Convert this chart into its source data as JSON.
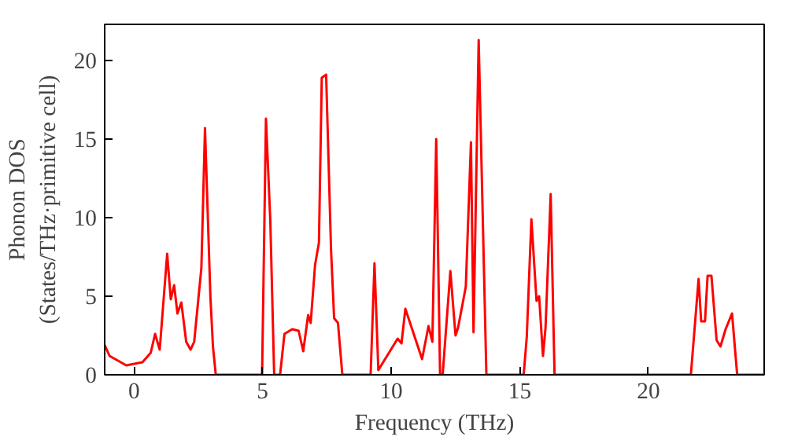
{
  "chart_data": {
    "type": "line",
    "xlabel": "Frequency (THz)",
    "ylabel": "Phonon DOS\n(States/THz·primitive cell)",
    "x": [
      -1.14,
      -0.95,
      -0.3,
      0.33,
      0.65,
      0.82,
      1.0,
      1.29,
      1.43,
      1.56,
      1.69,
      1.84,
      2.03,
      2.2,
      2.34,
      2.62,
      2.76,
      2.97,
      3.07,
      3.18,
      4.98,
      5.13,
      5.3,
      5.45,
      5.68,
      5.85,
      6.15,
      6.4,
      6.58,
      6.77,
      6.87,
      7.04,
      7.19,
      7.3,
      7.47,
      7.66,
      7.78,
      7.93,
      8.1,
      9.2,
      9.35,
      9.5,
      10.25,
      10.4,
      10.55,
      11.2,
      11.45,
      11.6,
      11.75,
      11.9,
      12.0,
      12.3,
      12.5,
      12.6,
      12.9,
      13.1,
      13.2,
      13.4,
      13.7,
      15.15,
      15.27,
      15.45,
      15.65,
      15.75,
      15.9,
      16.0,
      16.2,
      16.35,
      21.65,
      21.95,
      22.05,
      22.2,
      22.3,
      22.45,
      22.65,
      22.8,
      23.0,
      23.25,
      23.45,
      24.5
    ],
    "series": [
      {
        "color": "#ff0000",
        "values": [
          1.9,
          1.2,
          0.6,
          0.8,
          1.4,
          2.6,
          1.6,
          7.7,
          4.8,
          5.7,
          3.9,
          4.6,
          2.1,
          1.6,
          2.1,
          6.8,
          15.7,
          5.0,
          1.8,
          0,
          0,
          16.3,
          9.8,
          0,
          0,
          2.6,
          2.9,
          2.8,
          1.5,
          3.8,
          3.3,
          7.0,
          8.4,
          18.9,
          19.1,
          8.0,
          3.6,
          3.3,
          0,
          0,
          7.1,
          0.3,
          2.3,
          2.0,
          4.2,
          1.0,
          3.1,
          2.1,
          15.0,
          0,
          0,
          6.6,
          2.5,
          3.0,
          5.6,
          14.8,
          2.7,
          21.3,
          0,
          0,
          2.4,
          9.9,
          4.7,
          5.0,
          1.2,
          3.0,
          11.5,
          0,
          0,
          6.1,
          3.4,
          3.4,
          6.3,
          6.3,
          2.2,
          1.8,
          2.9,
          3.9,
          0,
          0
        ]
      }
    ],
    "xlim": [
      -1.14,
      24.5
    ],
    "ylim": [
      0,
      22.3
    ],
    "xticks": [
      0,
      5,
      10,
      15,
      20
    ],
    "yticks": [
      0,
      5,
      10,
      15,
      20
    ],
    "grid": false,
    "marker": "none",
    "line_style": "solid"
  }
}
